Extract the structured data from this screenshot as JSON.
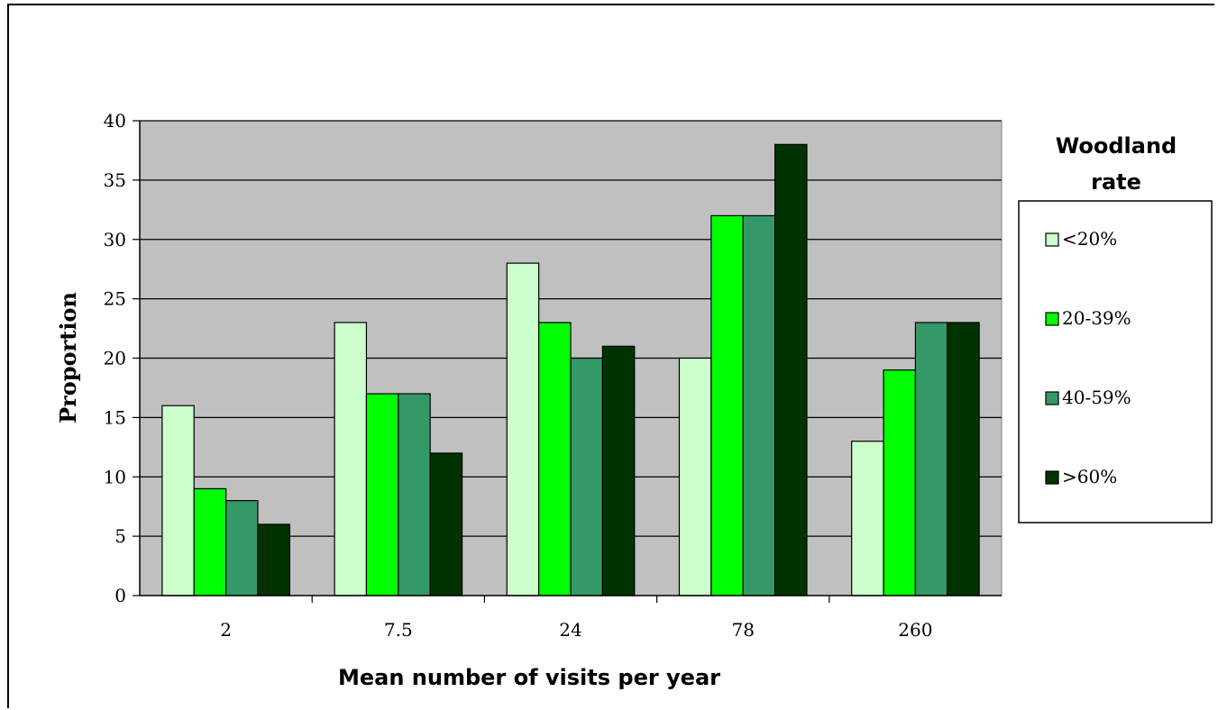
{
  "chart_data": {
    "type": "bar",
    "title": "",
    "xlabel": "Mean number of visits per year",
    "ylabel": "Proportion",
    "categories": [
      "2",
      "7.5",
      "24",
      "78",
      "260"
    ],
    "ylim": [
      0,
      40
    ],
    "yticks": [
      0,
      5,
      10,
      15,
      20,
      25,
      30,
      35,
      40
    ],
    "grid": true,
    "legend_title": "Woodland rate",
    "legend_title_lines": [
      "Woodland",
      "rate"
    ],
    "legend_position": "right",
    "plot_background": "#c0c0c0",
    "series": [
      {
        "name": "<20%",
        "color": "#ccffcc",
        "values": [
          16,
          23,
          28,
          20,
          13
        ]
      },
      {
        "name": "20-39%",
        "color": "#00ff00",
        "values": [
          9,
          17,
          23,
          32,
          19
        ]
      },
      {
        "name": "40-59%",
        "color": "#339966",
        "values": [
          8,
          17,
          20,
          32,
          23
        ]
      },
      {
        "name": ">60%",
        "color": "#003300",
        "values": [
          6,
          12,
          21,
          38,
          23
        ]
      }
    ]
  }
}
